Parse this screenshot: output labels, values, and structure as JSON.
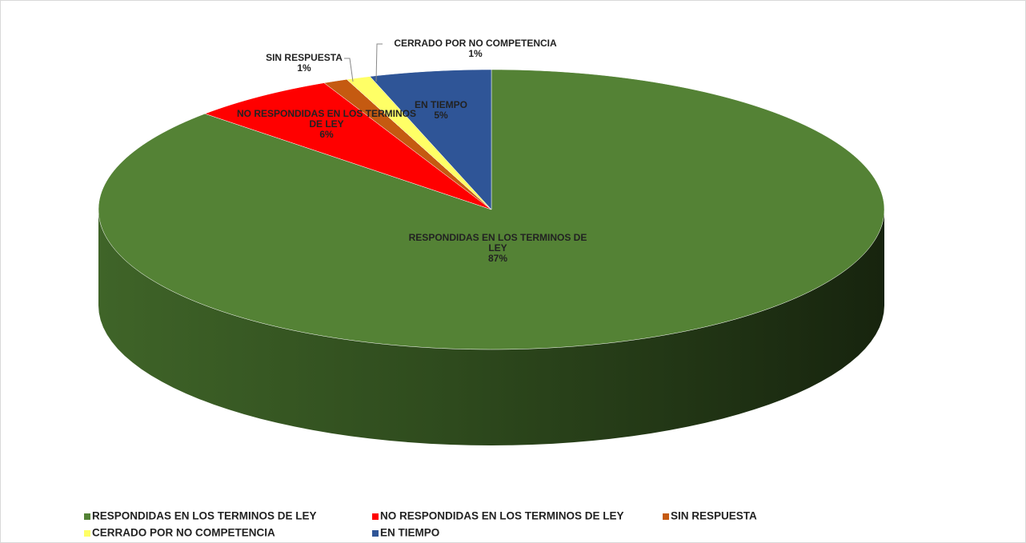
{
  "chart_data": {
    "type": "pie",
    "categories": [
      "RESPONDIDAS EN LOS TERMINOS DE LEY",
      "NO RESPONDIDAS EN LOS TERMINOS DE LEY",
      "SIN RESPUESTA",
      "CERRADO POR NO COMPETENCIA",
      "EN TIEMPO"
    ],
    "values": [
      87,
      6,
      1,
      1,
      5
    ],
    "value_labels": [
      "87%",
      "6%",
      "1%",
      "1%",
      "5%"
    ],
    "colors": [
      "#548235",
      "#ff0000",
      "#c55a11",
      "#ffff66",
      "#2f5597"
    ],
    "legend": "bottom"
  }
}
